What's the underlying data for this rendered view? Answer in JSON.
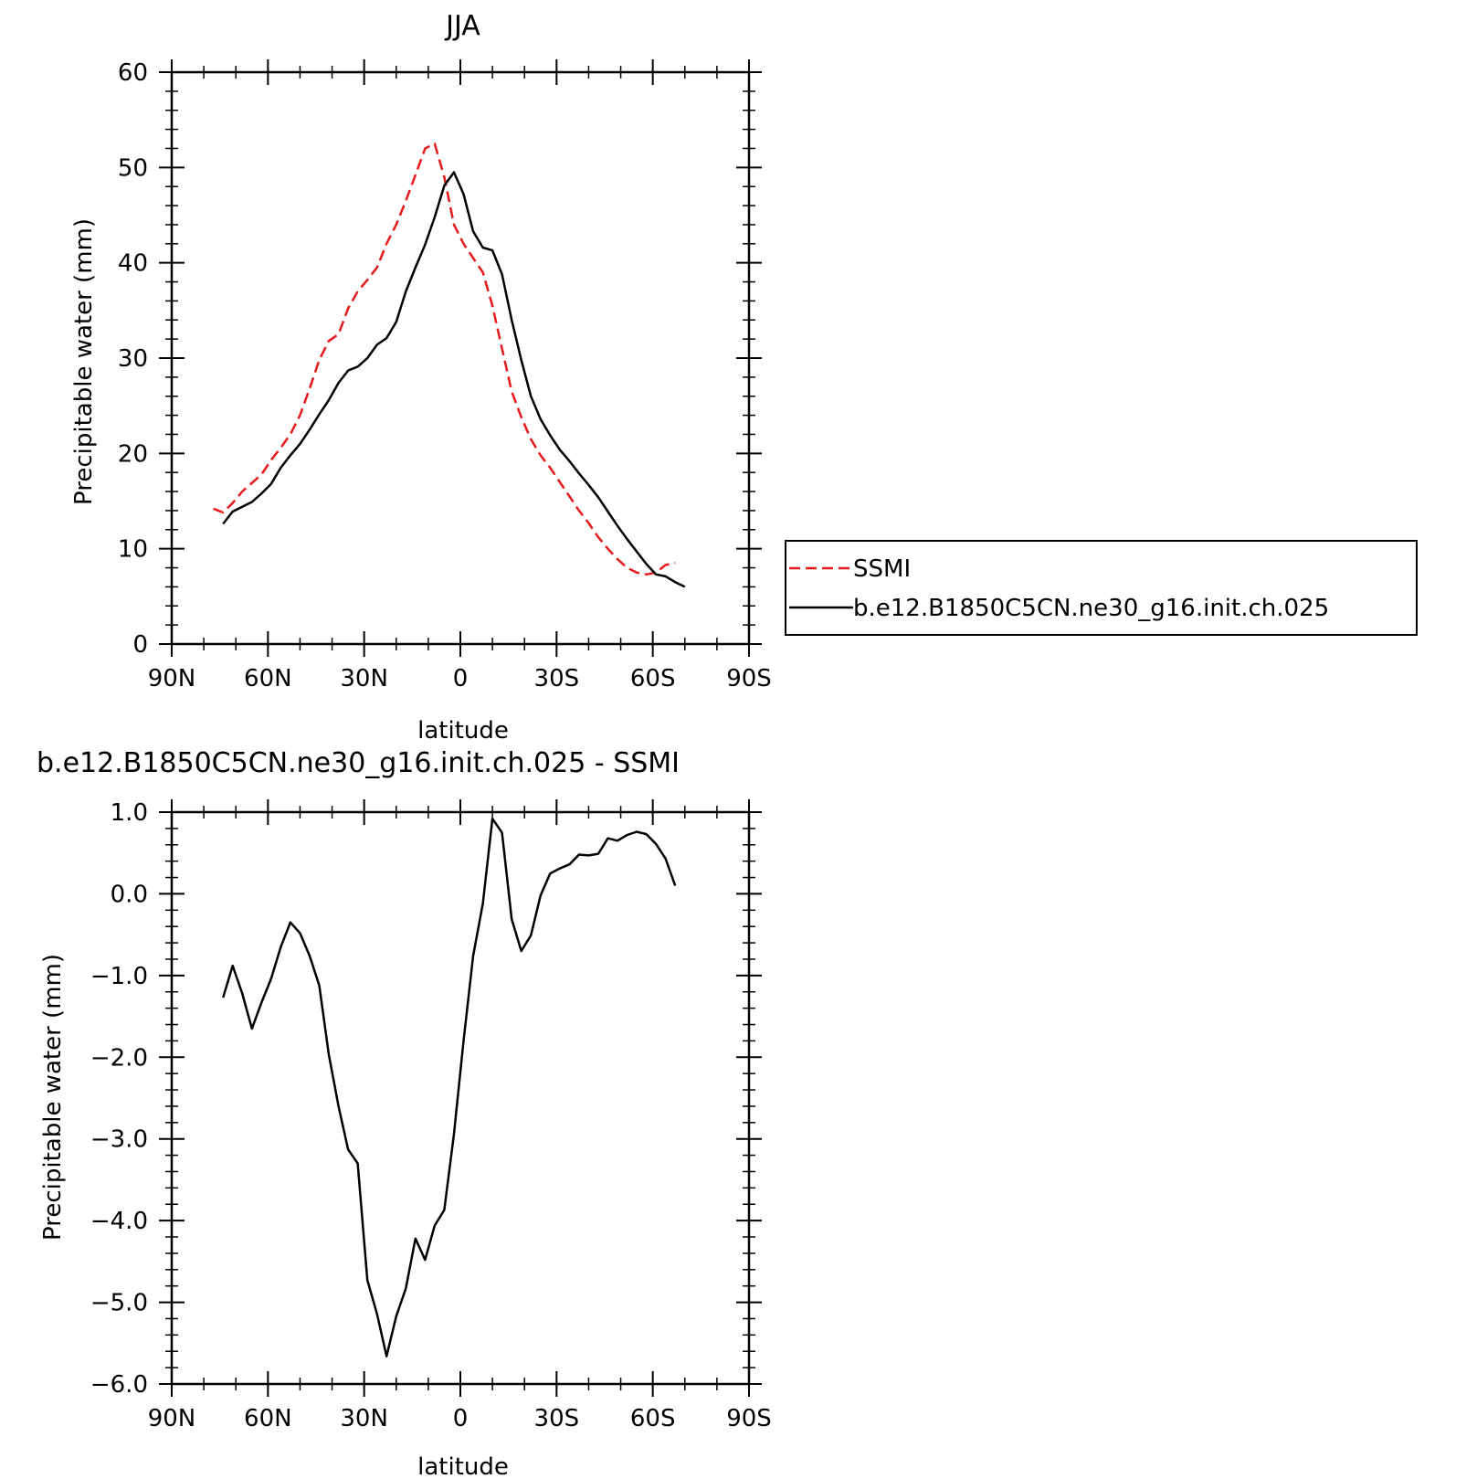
{
  "chart_data": [
    {
      "type": "line",
      "title": "JJA",
      "xlabel": "latitude",
      "ylabel": "Precipitable water (mm)",
      "xlim": [
        90,
        -90
      ],
      "ylim": [
        0,
        60
      ],
      "xticks": [
        90,
        60,
        30,
        0,
        -30,
        -60,
        -90
      ],
      "xtick_labels": [
        "90N",
        "60N",
        "30N",
        "0",
        "30S",
        "60S",
        "90S"
      ],
      "yticks": [
        0,
        10,
        20,
        30,
        40,
        50,
        60
      ],
      "ytick_labels": [
        "0",
        "10",
        "20",
        "30",
        "40",
        "50",
        "60"
      ],
      "legend_position": "right",
      "series": [
        {
          "name": "SSMI",
          "color": "#e41a1c",
          "style": "dashed",
          "x": [
            77,
            74,
            71,
            68,
            65,
            62,
            59,
            56,
            53,
            50,
            47,
            44,
            41,
            38,
            35,
            32,
            29,
            26,
            23,
            20,
            17,
            14,
            11,
            8,
            5,
            2,
            -1,
            -4,
            -7,
            -10,
            -13,
            -16,
            -19,
            -22,
            -25,
            -28,
            -31,
            -34,
            -37,
            -40,
            -43,
            -46,
            -49,
            -52,
            -55,
            -58,
            -61,
            -64,
            -67
          ],
          "y": [
            14.2,
            13.8,
            14.8,
            16.0,
            16.9,
            17.8,
            19.3,
            20.6,
            22.0,
            24.0,
            26.8,
            29.8,
            31.8,
            32.5,
            35.2,
            37.0,
            38.2,
            39.5,
            42.0,
            44.0,
            46.5,
            49.2,
            52.0,
            52.5,
            49.0,
            44.0,
            42.0,
            40.5,
            39.0,
            35.5,
            31.0,
            26.5,
            23.8,
            21.5,
            19.8,
            18.5,
            17.0,
            15.5,
            14.0,
            12.7,
            11.2,
            10.0,
            8.9,
            8.0,
            7.5,
            7.3,
            7.5,
            8.3,
            8.5
          ]
        },
        {
          "name": "b.e12.B1850C5CN.ne30_g16.init.ch.025",
          "color": "#000000",
          "style": "solid",
          "x": [
            74,
            71,
            68,
            65,
            62,
            59,
            56,
            53,
            50,
            47,
            44,
            41,
            38,
            35,
            32,
            29,
            26,
            23,
            20,
            17,
            14,
            11,
            8,
            5,
            2,
            -1,
            -4,
            -7,
            -10,
            -13,
            -16,
            -19,
            -22,
            -25,
            -28,
            -31,
            -34,
            -37,
            -40,
            -43,
            -46,
            -49,
            -52,
            -55,
            -58,
            -61,
            -64,
            -67,
            -70
          ],
          "y": [
            12.6,
            13.9,
            14.4,
            14.9,
            15.8,
            16.8,
            18.5,
            19.8,
            21.0,
            22.5,
            24.1,
            25.6,
            27.4,
            28.7,
            29.1,
            30.0,
            31.4,
            32.1,
            33.8,
            37.0,
            39.5,
            41.9,
            44.8,
            48.1,
            49.5,
            47.2,
            43.3,
            41.6,
            41.3,
            38.8,
            34.0,
            29.8,
            26.0,
            23.6,
            21.9,
            20.4,
            19.2,
            17.9,
            16.7,
            15.4,
            13.9,
            12.4,
            11.0,
            9.7,
            8.4,
            7.3,
            7.1,
            6.5,
            6.0
          ]
        }
      ]
    },
    {
      "type": "line",
      "title": "b.e12.B1850C5CN.ne30_g16.init.ch.025 - SSMI",
      "xlabel": "latitude",
      "ylabel": "Precipitable water (mm)",
      "xlim": [
        90,
        -90
      ],
      "ylim": [
        -6.0,
        1.0
      ],
      "xticks": [
        90,
        60,
        30,
        0,
        -30,
        -60,
        -90
      ],
      "xtick_labels": [
        "90N",
        "60N",
        "30N",
        "0",
        "30S",
        "60S",
        "90S"
      ],
      "yticks": [
        1.0,
        0.0,
        -1.0,
        -2.0,
        -3.0,
        -4.0,
        -5.0,
        -6.0
      ],
      "ytick_labels": [
        "1.0",
        "0.0",
        "−1.0",
        "−2.0",
        "−3.0",
        "−4.0",
        "−5.0",
        "−6.0"
      ],
      "series": [
        {
          "color": "#000000",
          "style": "solid",
          "x": [
            74,
            71,
            68,
            65,
            62,
            59,
            56,
            53,
            50,
            47,
            44,
            41,
            38,
            35,
            32,
            29,
            26,
            23,
            20,
            17,
            14,
            11,
            8,
            5,
            2,
            -1,
            -4,
            -7,
            -10,
            -13,
            -16,
            -19,
            -22,
            -25,
            -28,
            -31,
            -34,
            -37,
            -40,
            -43,
            -46,
            -49,
            -52,
            -55,
            -58,
            -61,
            -64,
            -67
          ],
          "y": [
            -1.27,
            -0.88,
            -1.22,
            -1.65,
            -1.33,
            -1.04,
            -0.65,
            -0.35,
            -0.48,
            -0.76,
            -1.12,
            -1.97,
            -2.6,
            -3.13,
            -3.3,
            -4.73,
            -5.14,
            -5.66,
            -5.17,
            -4.83,
            -4.22,
            -4.48,
            -4.06,
            -3.87,
            -2.94,
            -1.8,
            -0.76,
            -0.12,
            0.92,
            0.75,
            -0.31,
            -0.7,
            -0.51,
            -0.02,
            0.25,
            0.31,
            0.36,
            0.48,
            0.47,
            0.49,
            0.68,
            0.65,
            0.72,
            0.76,
            0.73,
            0.61,
            0.43,
            0.1
          ]
        }
      ]
    }
  ]
}
